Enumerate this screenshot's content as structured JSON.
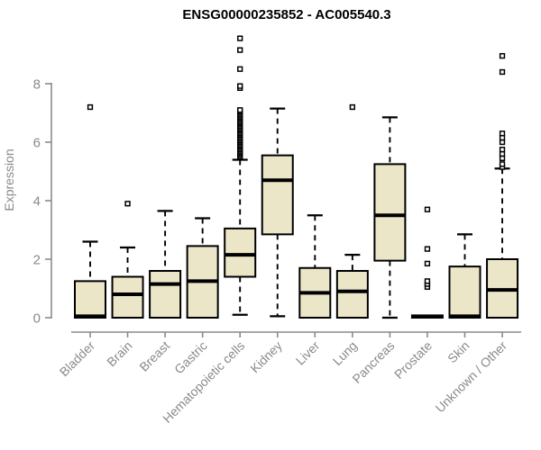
{
  "page": {
    "background": "#ffffff"
  },
  "chart_data": {
    "type": "boxplot",
    "title": "ENSG00000235852 - AC005540.3",
    "ylabel": "Expression",
    "xlabel": "",
    "y_ticks": [
      0,
      2,
      4,
      6,
      8
    ],
    "ylim": [
      0,
      9.8
    ],
    "grid": false,
    "legend": "none",
    "colors": {
      "box_fill": "#ECE6C9",
      "box_border": "#000000",
      "median": "#000000",
      "whisker": "#000000",
      "outlier": "#000000",
      "axis": "#8a8a8a",
      "title": "#000000",
      "background": "#ffffff"
    },
    "categories": [
      "Bladder",
      "Brain",
      "Breast",
      "Gastric",
      "Hematopoietic cells",
      "Kidney",
      "Liver",
      "Lung",
      "Pancreas",
      "Prostate",
      "Skin",
      "Unknown / Other"
    ],
    "boxes": [
      {
        "label": "Bladder",
        "whisker_low": 0,
        "q1": 0,
        "median": 0.05,
        "q3": 1.25,
        "whisker_high": 2.6,
        "outliers": [
          7.2
        ]
      },
      {
        "label": "Brain",
        "whisker_low": 0,
        "q1": 0,
        "median": 0.8,
        "q3": 1.4,
        "whisker_high": 2.4,
        "outliers": [
          3.9
        ]
      },
      {
        "label": "Breast",
        "whisker_low": 0,
        "q1": 0,
        "median": 1.15,
        "q3": 1.6,
        "whisker_high": 3.65,
        "outliers": []
      },
      {
        "label": "Gastric",
        "whisker_low": 0,
        "q1": 0,
        "median": 1.25,
        "q3": 2.45,
        "whisker_high": 3.4,
        "outliers": []
      },
      {
        "label": "Hematopoietic cells",
        "whisker_low": 0.1,
        "q1": 1.4,
        "median": 2.15,
        "q3": 3.05,
        "whisker_high": 5.4,
        "outliers": [
          5.5,
          5.55,
          5.6,
          5.65,
          5.7,
          5.75,
          5.8,
          5.85,
          5.9,
          5.95,
          6.0,
          6.05,
          6.1,
          6.15,
          6.2,
          6.25,
          6.3,
          6.35,
          6.4,
          6.45,
          6.5,
          6.55,
          6.6,
          6.65,
          6.7,
          6.75,
          6.8,
          6.85,
          6.9,
          6.95,
          7.0,
          7.05,
          7.1,
          7.85,
          7.92,
          8.5,
          9.15,
          9.55
        ]
      },
      {
        "label": "Kidney",
        "whisker_low": 0.05,
        "q1": 2.85,
        "median": 4.7,
        "q3": 5.55,
        "whisker_high": 7.15,
        "outliers": []
      },
      {
        "label": "Liver",
        "whisker_low": 0,
        "q1": 0,
        "median": 0.85,
        "q3": 1.7,
        "whisker_high": 3.5,
        "outliers": []
      },
      {
        "label": "Lung",
        "whisker_low": 0,
        "q1": 0,
        "median": 0.9,
        "q3": 1.6,
        "whisker_high": 2.15,
        "outliers": [
          7.2
        ]
      },
      {
        "label": "Pancreas",
        "whisker_low": 0,
        "q1": 1.95,
        "median": 3.5,
        "q3": 5.25,
        "whisker_high": 6.85,
        "outliers": []
      },
      {
        "label": "Prostate",
        "whisker_low": 0,
        "q1": 0,
        "median": 0.04,
        "q3": 0.08,
        "whisker_high": 0.08,
        "outliers": [
          1.05,
          1.15,
          1.25,
          1.85,
          2.35,
          3.7
        ]
      },
      {
        "label": "Skin",
        "whisker_low": 0,
        "q1": 0,
        "median": 0.05,
        "q3": 1.75,
        "whisker_high": 2.85,
        "outliers": []
      },
      {
        "label": "Unknown / Other",
        "whisker_low": 0,
        "q1": 0,
        "median": 0.95,
        "q3": 2.0,
        "whisker_high": 5.1,
        "outliers": [
          5.15,
          5.25,
          5.45,
          5.6,
          5.75,
          6.0,
          6.15,
          6.3,
          8.4,
          8.95
        ]
      }
    ]
  }
}
